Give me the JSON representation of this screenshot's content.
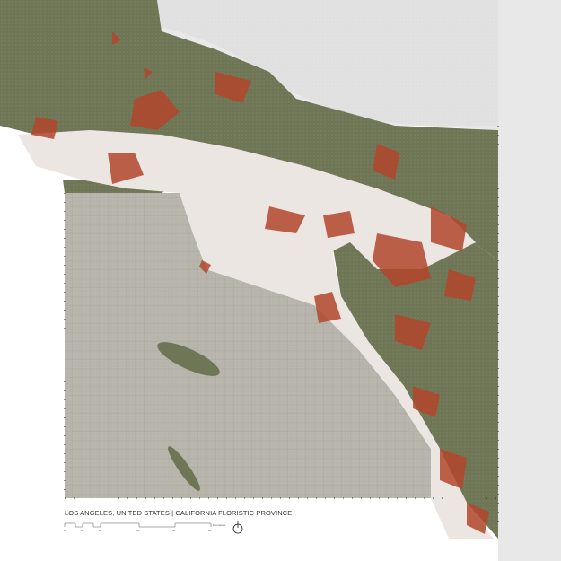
{
  "map": {
    "caption": "LOS ANGELES, UNITED STATES | CALIFORNIA FLORISTIC PROVINCE",
    "scale_bar": {
      "ticks": [
        "0",
        "10",
        "20",
        "40",
        "60",
        "80"
      ],
      "unit": "Kilometers"
    },
    "north_arrow": "north-arrow-icon",
    "colors": {
      "ocean": "#b6b4ab",
      "mountains": "#6e7656",
      "urban": "#ece6e3",
      "fire_risk": "#b3472c",
      "desert": "#e9e9e9"
    }
  }
}
